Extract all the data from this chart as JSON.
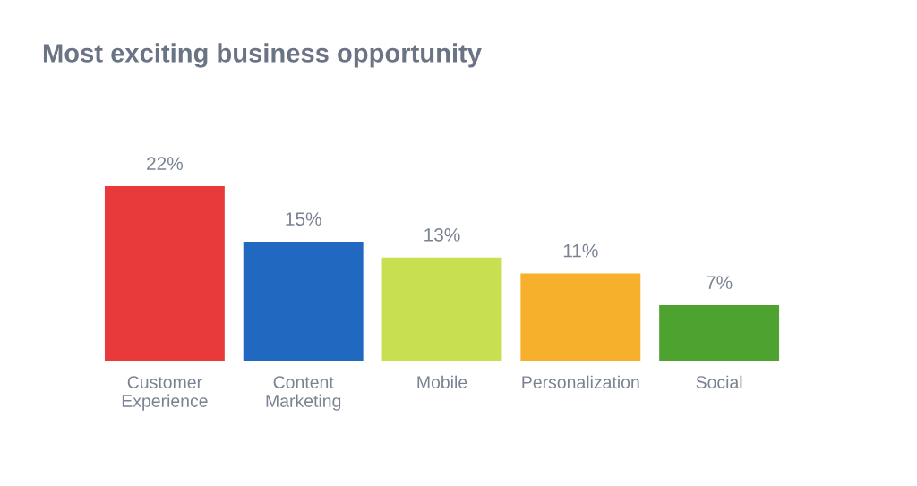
{
  "chart_data": {
    "type": "bar",
    "title": "Most exciting business opportunity",
    "categories": [
      "Customer Experience",
      "Content Marketing",
      "Mobile",
      "Personalization",
      "Social"
    ],
    "values": [
      22,
      15,
      13,
      11,
      7
    ],
    "value_labels": [
      "22%",
      "15%",
      "13%",
      "11%",
      "7%"
    ],
    "colors": [
      "#e83a3a",
      "#2068c0",
      "#c8e050",
      "#f7b02b",
      "#4ea22f"
    ],
    "grid": false
  }
}
